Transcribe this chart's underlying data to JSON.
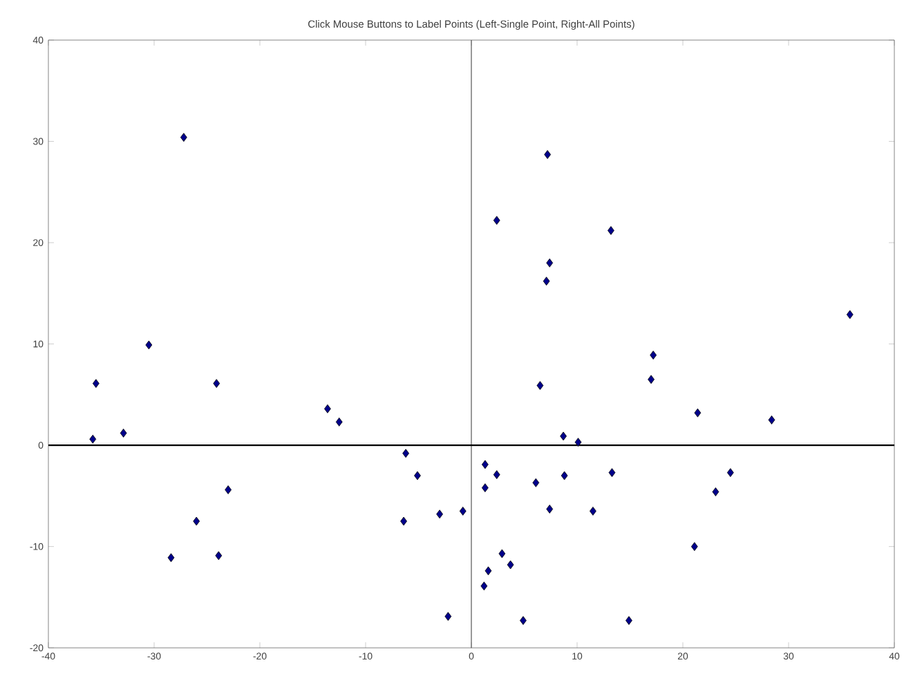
{
  "chart_data": {
    "type": "scatter",
    "title": "Click Mouse Buttons to Label Points (Left-Single Point,  Right-All Points)",
    "x": [
      -27.2,
      -30.5,
      -35.5,
      -24.1,
      -13.6,
      -12.5,
      -35.8,
      -32.9,
      -6.2,
      -5.1,
      -23.0,
      -26.0,
      -6.4,
      -3.0,
      -0.8,
      -28.4,
      -23.9,
      -2.2,
      7.2,
      2.4,
      13.2,
      7.4,
      7.1,
      35.8,
      17.2,
      17.0,
      6.5,
      21.4,
      28.4,
      8.7,
      10.1,
      1.3,
      2.4,
      1.3,
      6.1,
      8.8,
      13.3,
      24.5,
      23.1,
      7.4,
      11.5,
      21.1,
      2.9,
      3.7,
      1.6,
      1.2,
      4.9,
      14.9
    ],
    "values": [
      30.4,
      9.9,
      6.1,
      6.1,
      3.6,
      2.3,
      0.6,
      1.2,
      -0.8,
      -3.0,
      -4.4,
      -7.5,
      -7.5,
      -6.8,
      -6.5,
      -11.1,
      -10.9,
      -16.9,
      28.7,
      22.2,
      21.2,
      18.0,
      16.2,
      12.9,
      8.9,
      6.5,
      5.9,
      3.2,
      2.5,
      0.9,
      0.3,
      -1.9,
      -2.9,
      -4.2,
      -3.7,
      -3.0,
      -2.7,
      -2.7,
      -4.6,
      -6.3,
      -6.5,
      -10.0,
      -10.7,
      -11.8,
      -12.4,
      -13.9,
      -17.3,
      -17.3
    ],
    "color": "#00008b",
    "marker": "diamond",
    "xlim": [
      -40,
      40
    ],
    "ylim": [
      -20,
      40
    ],
    "xticks": [
      -40,
      -30,
      -20,
      -10,
      0,
      10,
      20,
      30,
      40
    ],
    "yticks": [
      -20,
      -10,
      0,
      10,
      20,
      30,
      40
    ],
    "ref_lines": [
      {
        "axis": "x",
        "value": 0,
        "color": "#555555"
      },
      {
        "axis": "y",
        "value": 0,
        "color": "#000000"
      }
    ],
    "grid": false
  }
}
